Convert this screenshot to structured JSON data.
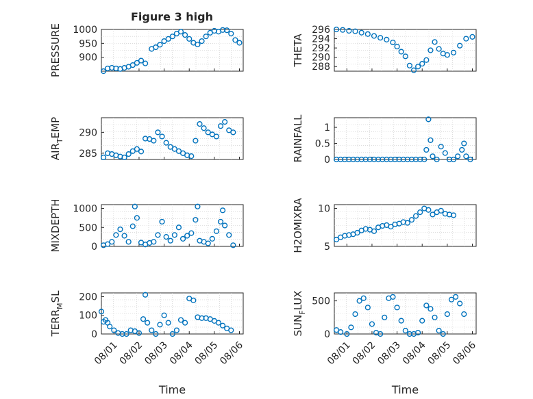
{
  "figure": {
    "title": "Figure 3 high",
    "marker_color": "#0072BD",
    "axis_color": "#262626",
    "grid": true
  },
  "chart_data": [
    {
      "type": "scatter",
      "ylabel": "PRESSURE",
      "xlabel": "",
      "xlim": [
        "08/01",
        "08/06"
      ],
      "xtick_labels": [],
      "ylim": [
        850,
        1000
      ],
      "yticks": [
        900,
        950,
        1000
      ],
      "ytick_labels": [
        "900",
        "950",
        "1000"
      ],
      "points": [
        [
          "07/31 14:00",
          850
        ],
        [
          "07/31 18:00",
          860
        ],
        [
          "07/31 22:00",
          862
        ],
        [
          "08/01 02:00",
          860
        ],
        [
          "08/01 06:00",
          858
        ],
        [
          "08/01 10:00",
          862
        ],
        [
          "08/01 14:00",
          866
        ],
        [
          "08/01 18:00",
          872
        ],
        [
          "08/01 22:00",
          880
        ],
        [
          "08/02 02:00",
          888
        ],
        [
          "08/02 06:00",
          878
        ],
        [
          "08/02 12:00",
          930
        ],
        [
          "08/02 16:00",
          936
        ],
        [
          "08/02 20:00",
          945
        ],
        [
          "08/03 00:00",
          958
        ],
        [
          "08/03 04:00",
          966
        ],
        [
          "08/03 08:00",
          975
        ],
        [
          "08/03 12:00",
          985
        ],
        [
          "08/03 16:00",
          992
        ],
        [
          "08/03 20:00",
          980
        ],
        [
          "08/04 00:00",
          966
        ],
        [
          "08/04 04:00",
          952
        ],
        [
          "08/04 08:00",
          946
        ],
        [
          "08/04 12:00",
          958
        ],
        [
          "08/04 16:00",
          975
        ],
        [
          "08/04 20:00",
          988
        ],
        [
          "08/05 00:00",
          995
        ],
        [
          "08/05 04:00",
          992
        ],
        [
          "08/05 08:00",
          998
        ],
        [
          "08/05 12:00",
          997
        ],
        [
          "08/05 16:00",
          985
        ],
        [
          "08/05 20:00",
          962
        ],
        [
          "08/06 00:00",
          952
        ]
      ]
    },
    {
      "type": "scatter",
      "ylabel": "THETA",
      "xlabel": "",
      "xlim": [
        "08/01",
        "08/06"
      ],
      "xtick_labels": [],
      "ylim": [
        287,
        296
      ],
      "yticks": [
        288,
        290,
        292,
        294,
        296
      ],
      "ytick_labels": [
        "288",
        "290",
        "292",
        "294",
        "296"
      ],
      "points": [
        [
          "07/31 14:00",
          296.0
        ],
        [
          "07/31 20:00",
          295.9
        ],
        [
          "08/01 02:00",
          295.7
        ],
        [
          "08/01 08:00",
          295.6
        ],
        [
          "08/01 14:00",
          295.3
        ],
        [
          "08/01 20:00",
          295.0
        ],
        [
          "08/02 02:00",
          294.6
        ],
        [
          "08/02 08:00",
          294.2
        ],
        [
          "08/02 14:00",
          293.8
        ],
        [
          "08/02 20:00",
          293.2
        ],
        [
          "08/03 00:00",
          292.3
        ],
        [
          "08/03 04:00",
          291.2
        ],
        [
          "08/03 08:00",
          290.2
        ],
        [
          "08/03 12:00",
          288.2
        ],
        [
          "08/03 16:00",
          287.2
        ],
        [
          "08/03 20:00",
          288.0
        ],
        [
          "08/04 00:00",
          288.6
        ],
        [
          "08/04 04:00",
          289.4
        ],
        [
          "08/04 08:00",
          291.5
        ],
        [
          "08/04 12:00",
          293.3
        ],
        [
          "08/04 16:00",
          291.8
        ],
        [
          "08/04 20:00",
          290.8
        ],
        [
          "08/05 00:00",
          290.5
        ],
        [
          "08/05 06:00",
          291.0
        ],
        [
          "08/05 12:00",
          292.5
        ],
        [
          "08/05 18:00",
          294.0
        ],
        [
          "08/06 00:00",
          294.4
        ]
      ]
    },
    {
      "type": "scatter",
      "ylabel": "AIR_TEMP",
      "xlabel": "",
      "xlim": [
        "08/01",
        "08/06"
      ],
      "xtick_labels": [],
      "ylim": [
        283.5,
        293.5
      ],
      "yticks": [
        285,
        290
      ],
      "ytick_labels": [
        "285",
        "290"
      ],
      "points": [
        [
          "07/31 14:00",
          284.0
        ],
        [
          "07/31 18:00",
          285.0
        ],
        [
          "07/31 22:00",
          284.8
        ],
        [
          "08/01 02:00",
          284.5
        ],
        [
          "08/01 06:00",
          284.2
        ],
        [
          "08/01 10:00",
          284.0
        ],
        [
          "08/01 14:00",
          284.8
        ],
        [
          "08/01 18:00",
          285.5
        ],
        [
          "08/01 22:00",
          286.0
        ],
        [
          "08/02 02:00",
          285.4
        ],
        [
          "08/02 06:00",
          288.5
        ],
        [
          "08/02 10:00",
          288.4
        ],
        [
          "08/02 14:00",
          288.0
        ],
        [
          "08/02 18:00",
          290.0
        ],
        [
          "08/02 22:00",
          289.0
        ],
        [
          "08/03 02:00",
          287.5
        ],
        [
          "08/03 06:00",
          286.5
        ],
        [
          "08/03 10:00",
          286.0
        ],
        [
          "08/03 14:00",
          285.5
        ],
        [
          "08/03 18:00",
          285.0
        ],
        [
          "08/03 22:00",
          284.5
        ],
        [
          "08/04 02:00",
          284.3
        ],
        [
          "08/04 06:00",
          288.0
        ],
        [
          "08/04 10:00",
          292.0
        ],
        [
          "08/04 14:00",
          291.0
        ],
        [
          "08/04 18:00",
          290.0
        ],
        [
          "08/04 22:00",
          289.5
        ],
        [
          "08/05 02:00",
          289.0
        ],
        [
          "08/05 06:00",
          291.5
        ],
        [
          "08/05 10:00",
          292.5
        ],
        [
          "08/05 14:00",
          290.5
        ],
        [
          "08/05 18:00",
          290.0
        ]
      ]
    },
    {
      "type": "scatter",
      "ylabel": "RAINFALL",
      "xlabel": "",
      "xlim": [
        "08/01",
        "08/06"
      ],
      "xtick_labels": [],
      "ylim": [
        0,
        1.3
      ],
      "yticks": [
        0,
        0.5,
        1
      ],
      "ytick_labels": [
        "0",
        "0.5",
        "1"
      ],
      "points": [
        [
          "07/31 14:00",
          0
        ],
        [
          "07/31 18:00",
          0
        ],
        [
          "07/31 22:00",
          0
        ],
        [
          "08/01 02:00",
          0
        ],
        [
          "08/01 06:00",
          0
        ],
        [
          "08/01 10:00",
          0
        ],
        [
          "08/01 14:00",
          0
        ],
        [
          "08/01 18:00",
          0
        ],
        [
          "08/01 22:00",
          0
        ],
        [
          "08/02 02:00",
          0
        ],
        [
          "08/02 06:00",
          0
        ],
        [
          "08/02 10:00",
          0
        ],
        [
          "08/02 14:00",
          0
        ],
        [
          "08/02 18:00",
          0
        ],
        [
          "08/02 22:00",
          0
        ],
        [
          "08/03 02:00",
          0
        ],
        [
          "08/03 06:00",
          0
        ],
        [
          "08/03 10:00",
          0
        ],
        [
          "08/03 14:00",
          0
        ],
        [
          "08/03 18:00",
          0
        ],
        [
          "08/03 22:00",
          0
        ],
        [
          "08/04 02:00",
          0
        ],
        [
          "08/04 04:00",
          0.3
        ],
        [
          "08/04 06:00",
          1.25
        ],
        [
          "08/04 08:00",
          0.6
        ],
        [
          "08/04 10:00",
          0.1
        ],
        [
          "08/04 14:00",
          0
        ],
        [
          "08/04 18:00",
          0.4
        ],
        [
          "08/04 22:00",
          0.2
        ],
        [
          "08/05 02:00",
          0
        ],
        [
          "08/05 06:00",
          0
        ],
        [
          "08/05 10:00",
          0.1
        ],
        [
          "08/05 14:00",
          0.3
        ],
        [
          "08/05 16:00",
          0.5
        ],
        [
          "08/05 18:00",
          0.1
        ],
        [
          "08/05 22:00",
          0
        ]
      ]
    },
    {
      "type": "scatter",
      "ylabel": "MIXDEPTH",
      "xlabel": "",
      "xlim": [
        "08/01",
        "08/06"
      ],
      "xtick_labels": [],
      "ylim": [
        0,
        1100
      ],
      "yticks": [
        0,
        500,
        1000
      ],
      "ytick_labels": [
        "0",
        "500",
        "1000"
      ],
      "points": [
        [
          "07/31 14:00",
          30
        ],
        [
          "07/31 18:00",
          60
        ],
        [
          "07/31 22:00",
          120
        ],
        [
          "08/01 02:00",
          300
        ],
        [
          "08/01 06:00",
          450
        ],
        [
          "08/01 10:00",
          280
        ],
        [
          "08/01 14:00",
          120
        ],
        [
          "08/01 18:00",
          530
        ],
        [
          "08/01 20:00",
          1050
        ],
        [
          "08/01 22:00",
          750
        ],
        [
          "08/02 02:00",
          100
        ],
        [
          "08/02 06:00",
          50
        ],
        [
          "08/02 10:00",
          90
        ],
        [
          "08/02 14:00",
          120
        ],
        [
          "08/02 18:00",
          300
        ],
        [
          "08/02 22:00",
          650
        ],
        [
          "08/03 02:00",
          250
        ],
        [
          "08/03 06:00",
          150
        ],
        [
          "08/03 10:00",
          300
        ],
        [
          "08/03 14:00",
          500
        ],
        [
          "08/03 18:00",
          200
        ],
        [
          "08/03 22:00",
          280
        ],
        [
          "08/04 02:00",
          350
        ],
        [
          "08/04 06:00",
          700
        ],
        [
          "08/04 08:00",
          1050
        ],
        [
          "08/04 10:00",
          150
        ],
        [
          "08/04 14:00",
          120
        ],
        [
          "08/04 18:00",
          80
        ],
        [
          "08/04 22:00",
          200
        ],
        [
          "08/05 02:00",
          400
        ],
        [
          "08/05 06:00",
          650
        ],
        [
          "08/05 08:00",
          950
        ],
        [
          "08/05 10:00",
          550
        ],
        [
          "08/05 14:00",
          300
        ],
        [
          "08/05 18:00",
          30
        ]
      ]
    },
    {
      "type": "scatter",
      "ylabel": "H2OMIXRA",
      "xlabel": "",
      "xlim": [
        "08/01",
        "08/06"
      ],
      "xtick_labels": [],
      "ylim": [
        5,
        10.5
      ],
      "yticks": [
        5,
        10
      ],
      "ytick_labels": [
        "5",
        "10"
      ],
      "points": [
        [
          "07/31 14:00",
          5.9
        ],
        [
          "07/31 18:00",
          6.2
        ],
        [
          "07/31 22:00",
          6.4
        ],
        [
          "08/01 02:00",
          6.5
        ],
        [
          "08/01 06:00",
          6.6
        ],
        [
          "08/01 10:00",
          6.8
        ],
        [
          "08/01 14:00",
          7.1
        ],
        [
          "08/01 18:00",
          7.3
        ],
        [
          "08/01 22:00",
          7.2
        ],
        [
          "08/02 02:00",
          7.0
        ],
        [
          "08/02 06:00",
          7.5
        ],
        [
          "08/02 10:00",
          7.7
        ],
        [
          "08/02 14:00",
          7.8
        ],
        [
          "08/02 18:00",
          7.6
        ],
        [
          "08/02 22:00",
          7.9
        ],
        [
          "08/03 02:00",
          8.0
        ],
        [
          "08/03 06:00",
          8.2
        ],
        [
          "08/03 10:00",
          8.1
        ],
        [
          "08/03 14:00",
          8.5
        ],
        [
          "08/03 18:00",
          9.0
        ],
        [
          "08/03 22:00",
          9.5
        ],
        [
          "08/04 02:00",
          10.0
        ],
        [
          "08/04 06:00",
          9.8
        ],
        [
          "08/04 10:00",
          9.2
        ],
        [
          "08/04 14:00",
          9.5
        ],
        [
          "08/04 18:00",
          9.7
        ],
        [
          "08/04 22:00",
          9.3
        ],
        [
          "08/05 02:00",
          9.2
        ],
        [
          "08/05 06:00",
          9.1
        ]
      ]
    },
    {
      "type": "scatter",
      "ylabel": "TERR_MSL",
      "xlabel": "Time",
      "xlim": [
        "08/01",
        "08/06"
      ],
      "xtick_labels": [
        "08/01",
        "08/02",
        "08/03",
        "08/04",
        "08/05",
        "08/06"
      ],
      "ylim": [
        0,
        220
      ],
      "yticks": [
        0,
        100,
        200
      ],
      "ytick_labels": [
        "0",
        "100",
        "200"
      ],
      "points": [
        [
          "07/31 12:00",
          120
        ],
        [
          "07/31 14:00",
          65
        ],
        [
          "07/31 16:00",
          75
        ],
        [
          "07/31 18:00",
          60
        ],
        [
          "07/31 20:00",
          40
        ],
        [
          "08/01 00:00",
          20
        ],
        [
          "08/01 04:00",
          5
        ],
        [
          "08/01 08:00",
          0
        ],
        [
          "08/01 12:00",
          0
        ],
        [
          "08/01 16:00",
          20
        ],
        [
          "08/01 20:00",
          15
        ],
        [
          "08/02 00:00",
          5
        ],
        [
          "08/02 04:00",
          80
        ],
        [
          "08/02 06:00",
          210
        ],
        [
          "08/02 08:00",
          60
        ],
        [
          "08/02 12:00",
          20
        ],
        [
          "08/02 16:00",
          0
        ],
        [
          "08/02 20:00",
          50
        ],
        [
          "08/03 00:00",
          100
        ],
        [
          "08/03 04:00",
          60
        ],
        [
          "08/03 08:00",
          0
        ],
        [
          "08/03 12:00",
          20
        ],
        [
          "08/03 16:00",
          75
        ],
        [
          "08/03 20:00",
          60
        ],
        [
          "08/04 00:00",
          190
        ],
        [
          "08/04 04:00",
          180
        ],
        [
          "08/04 08:00",
          90
        ],
        [
          "08/04 12:00",
          85
        ],
        [
          "08/04 16:00",
          85
        ],
        [
          "08/04 20:00",
          80
        ],
        [
          "08/05 00:00",
          70
        ],
        [
          "08/05 04:00",
          60
        ],
        [
          "08/05 08:00",
          45
        ],
        [
          "08/05 12:00",
          30
        ],
        [
          "08/05 16:00",
          20
        ]
      ]
    },
    {
      "type": "scatter",
      "ylabel": "SUN_FLUX",
      "xlabel": "Time",
      "xlim": [
        "08/01",
        "08/06"
      ],
      "xtick_labels": [
        "08/01",
        "08/02",
        "08/03",
        "08/04",
        "08/05",
        "08/06"
      ],
      "ylim": [
        0,
        620
      ],
      "yticks": [
        0,
        500
      ],
      "ytick_labels": [
        "0",
        "500"
      ],
      "points": [
        [
          "07/31 14:00",
          60
        ],
        [
          "07/31 18:00",
          30
        ],
        [
          "08/01 00:00",
          0
        ],
        [
          "08/01 04:00",
          100
        ],
        [
          "08/01 08:00",
          300
        ],
        [
          "08/01 12:00",
          500
        ],
        [
          "08/01 16:00",
          540
        ],
        [
          "08/01 20:00",
          400
        ],
        [
          "08/02 00:00",
          150
        ],
        [
          "08/02 04:00",
          20
        ],
        [
          "08/02 08:00",
          0
        ],
        [
          "08/02 12:00",
          250
        ],
        [
          "08/02 16:00",
          540
        ],
        [
          "08/02 20:00",
          560
        ],
        [
          "08/03 00:00",
          400
        ],
        [
          "08/03 04:00",
          200
        ],
        [
          "08/03 08:00",
          50
        ],
        [
          "08/03 12:00",
          0
        ],
        [
          "08/03 16:00",
          0
        ],
        [
          "08/03 20:00",
          20
        ],
        [
          "08/04 00:00",
          200
        ],
        [
          "08/04 04:00",
          430
        ],
        [
          "08/04 08:00",
          380
        ],
        [
          "08/04 12:00",
          250
        ],
        [
          "08/04 16:00",
          50
        ],
        [
          "08/04 20:00",
          0
        ],
        [
          "08/05 00:00",
          300
        ],
        [
          "08/05 04:00",
          520
        ],
        [
          "08/05 08:00",
          560
        ],
        [
          "08/05 12:00",
          460
        ],
        [
          "08/05 16:00",
          300
        ]
      ]
    }
  ]
}
